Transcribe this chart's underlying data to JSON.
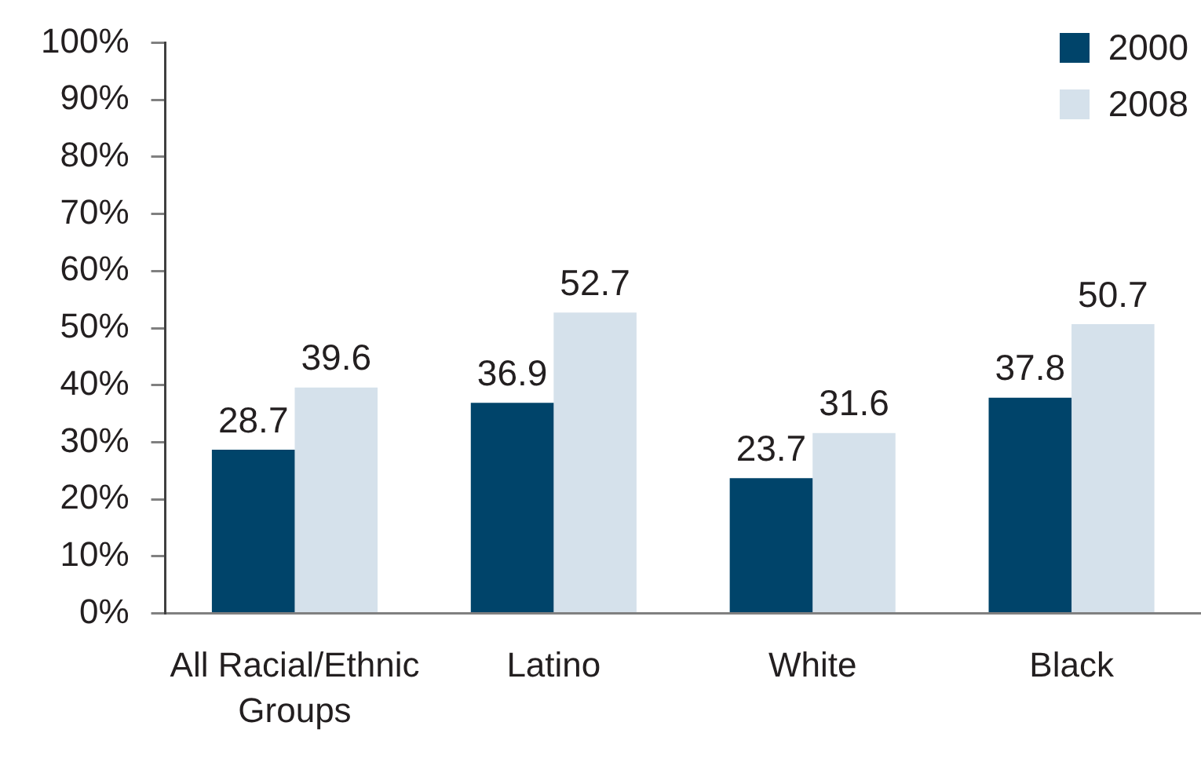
{
  "chart_data": {
    "type": "bar",
    "categories": [
      "All Racial/Ethnic Groups",
      "Latino",
      "White",
      "Black"
    ],
    "series": [
      {
        "name": "2000",
        "color": "#00446a",
        "values": [
          28.7,
          36.9,
          23.7,
          37.8
        ]
      },
      {
        "name": "2008",
        "color": "#d5e1eb",
        "values": [
          39.6,
          52.7,
          31.6,
          50.7
        ]
      }
    ],
    "ylim": [
      0,
      100
    ],
    "yticks": [
      {
        "value": 0,
        "label": "0%"
      },
      {
        "value": 10,
        "label": "10%"
      },
      {
        "value": 20,
        "label": "20%"
      },
      {
        "value": 30,
        "label": "30%"
      },
      {
        "value": 40,
        "label": "40%"
      },
      {
        "value": 50,
        "label": "50%"
      },
      {
        "value": 60,
        "label": "60%"
      },
      {
        "value": 70,
        "label": "70%"
      },
      {
        "value": 80,
        "label": "80%"
      },
      {
        "value": 90,
        "label": "90%"
      },
      {
        "value": 100,
        "label": "100%"
      }
    ],
    "data_labels": true,
    "grid": false,
    "legend": "top right"
  }
}
